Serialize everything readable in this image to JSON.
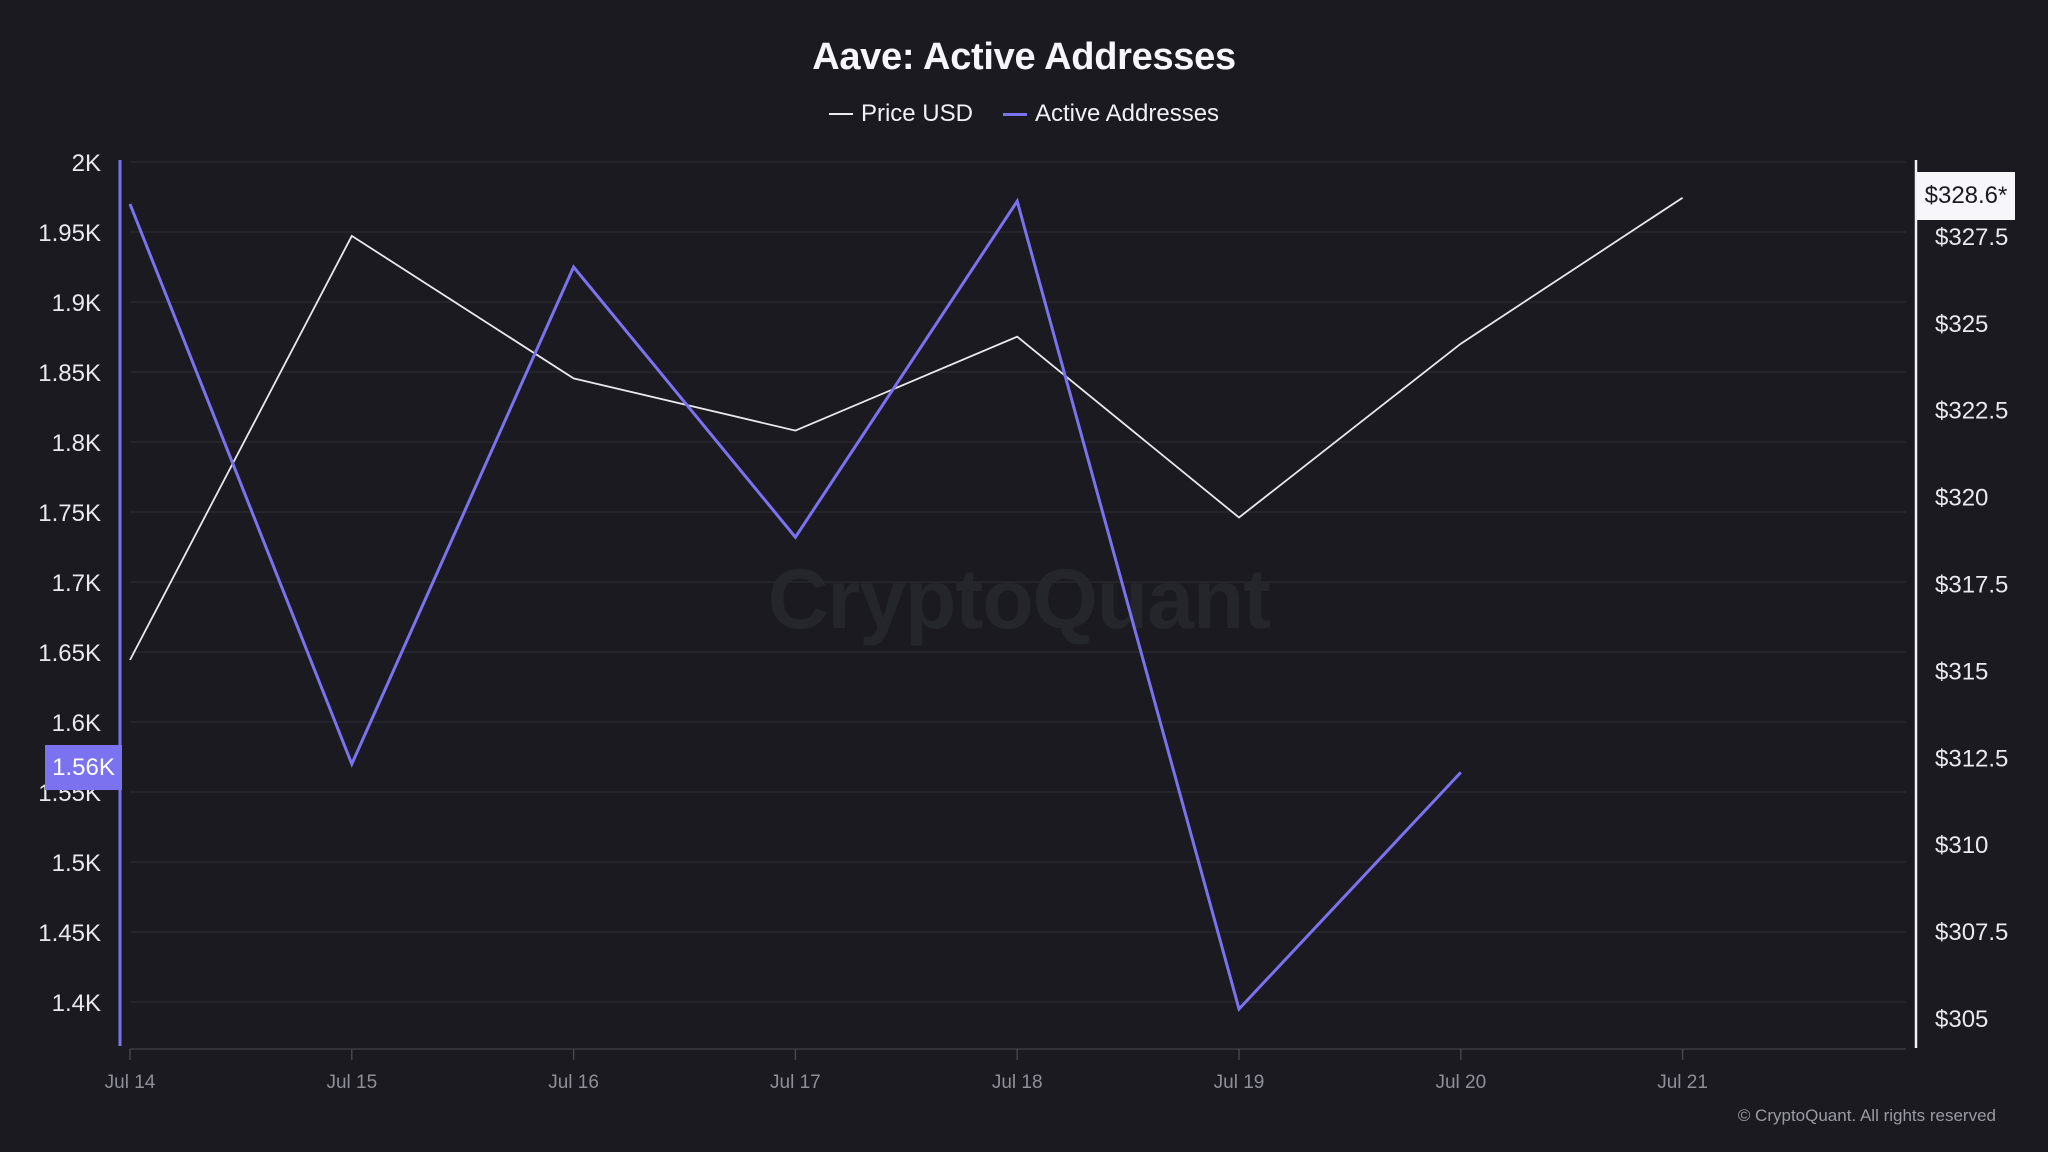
{
  "header": {
    "title": "Aave: Active Addresses"
  },
  "legend": [
    {
      "label": "Price USD",
      "color": "#e8e8ee"
    },
    {
      "label": "Active Addresses",
      "color": "#7a72ef"
    }
  ],
  "badges": {
    "left_current": "1.56K",
    "right_current": "$328.6*"
  },
  "watermark": "CryptoQuant",
  "footer": {
    "copyright": "© CryptoQuant. All rights reserved"
  },
  "colors": {
    "background": "#1b1a20",
    "active_addresses": "#7a72ef",
    "price": "#e8e8ee",
    "grid": "#2a2a31"
  },
  "chart_data": {
    "type": "line",
    "title": "Aave: Active Addresses",
    "x": [
      "Jul 14",
      "Jul 15",
      "Jul 16",
      "Jul 17",
      "Jul 18",
      "Jul 19",
      "Jul 20",
      "Jul 21"
    ],
    "series": [
      {
        "name": "Price USD",
        "axis": "right",
        "color": "#e8e8ee",
        "values": [
          315.3,
          327.5,
          323.4,
          321.9,
          324.6,
          319.4,
          324.4,
          328.6
        ]
      },
      {
        "name": "Active Addresses",
        "axis": "left",
        "color": "#7a72ef",
        "values": [
          1970,
          1570,
          1925,
          1732,
          1972,
          1395,
          1564,
          null
        ]
      }
    ],
    "left_axis": {
      "ylim": [
        1375,
        2000
      ],
      "ticks": [
        2000,
        1950,
        1900,
        1850,
        1800,
        1750,
        1700,
        1650,
        1600,
        1550,
        1500,
        1450,
        1400
      ],
      "tick_labels": [
        "2K",
        "1.95K",
        "1.9K",
        "1.85K",
        "1.8K",
        "1.75K",
        "1.7K",
        "1.65K",
        "1.6K",
        "1.55K",
        "1.5K",
        "1.45K",
        "1.4K"
      ]
    },
    "right_axis": {
      "ylim": [
        304,
        329
      ],
      "ticks": [
        327.5,
        325,
        322.5,
        320,
        317.5,
        315,
        312.5,
        310,
        307.5,
        305
      ],
      "tick_labels": [
        "$327.5",
        "$325",
        "$322.5",
        "$320",
        "$317.5",
        "$315",
        "$312.5",
        "$310",
        "$307.5",
        "$305"
      ]
    },
    "xlabel": "",
    "ylabel_left": "Active Addresses",
    "ylabel_right": "Price USD",
    "grid": true,
    "legend_position": "top-center"
  }
}
